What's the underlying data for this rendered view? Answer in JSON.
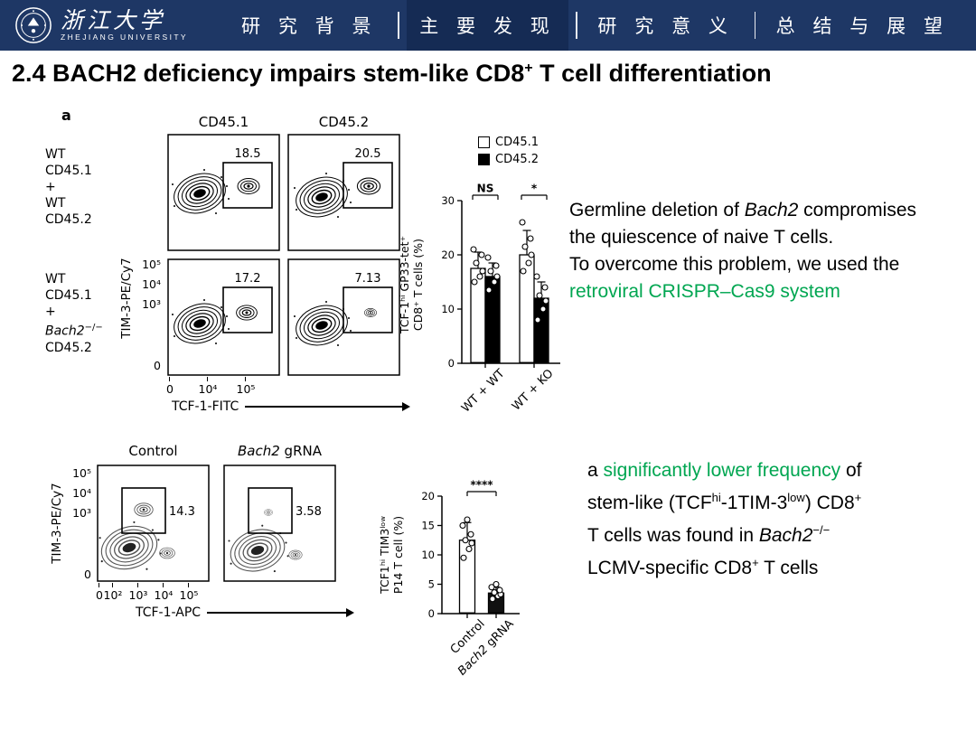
{
  "header": {
    "logo": {
      "cn": "浙江大学",
      "en": "ZHEJIANG UNIVERSITY"
    },
    "nav": [
      {
        "label": "研 究 背 景"
      },
      {
        "label": "主 要 发 现"
      },
      {
        "label": "研 究 意 义"
      },
      {
        "label": "总 结 与 展 望"
      }
    ]
  },
  "title": {
    "pre": "2.4 BACH2 deficiency impairs stem-like CD8",
    "sup": "+",
    "post": " T cell differentiation"
  },
  "figure_top": {
    "panel_label": "a",
    "col_headers": [
      "CD45.1",
      "CD45.2"
    ],
    "rows": [
      {
        "label_lines": [
          "WT",
          "CD45.1",
          "+",
          "WT",
          "CD45.2"
        ],
        "values": [
          "18.5",
          "20.5"
        ]
      },
      {
        "label_lines_pre": [
          "WT",
          "CD45.1",
          "+"
        ],
        "gene": "Bach2",
        "gene_sup": "−/−",
        "label_last": "CD45.2",
        "values": [
          "17.2",
          "7.13"
        ]
      }
    ],
    "y_axis": {
      "label": "TIM-3-PE/Cy7",
      "ticks": [
        "10⁵",
        "10⁴",
        "10³",
        "0"
      ]
    },
    "x_axis": {
      "label": "TCF-1-FITC",
      "ticks": [
        "0",
        "10⁴",
        "10⁵"
      ]
    }
  },
  "figure_bottom": {
    "col1": "Control",
    "col2_it": "Bach2",
    "col2_rest": " gRNA",
    "values": [
      "14.3",
      "3.58"
    ],
    "y_axis": {
      "label": "TIM-3-PE/Cy7",
      "ticks": [
        "10⁵",
        "10⁴",
        "10³",
        "0"
      ]
    },
    "x_axis": {
      "label": "TCF-1-APC",
      "ticks": [
        "0",
        "10²",
        "10³",
        "10⁴",
        "10⁵"
      ]
    }
  },
  "text_top": {
    "l1a": "Germline deletion of ",
    "l1b": "Bach2",
    "l1c": " compromises",
    "l2": "the quiescence of naive T cells.",
    "l3": "To overcome this problem, we used the",
    "l4": "retroviral CRISPR–Cas9 system"
  },
  "text_bottom": {
    "l1a": "a ",
    "l1b": "significantly lower frequency",
    "l1c": " of",
    "l2a": "stem-like (TCF",
    "l2sup1": "hi",
    "l2b": "-1TIM-3",
    "l2sup2": "low",
    "l2c": ") CD8",
    "l2sup3": "+",
    "l3a": "T cells was found in ",
    "l3it": "Bach2",
    "l3sup": "−/−",
    "l4a": "LCMV-specific CD8",
    "l4sup": "+",
    "l4b": " T cells"
  },
  "chart_data": [
    {
      "type": "bar",
      "ylabel_line1": "TCF-1ʰⁱ GP33-tet⁺",
      "ylabel_line2": "CD8⁺ T cells (%)",
      "ylim": [
        0,
        30
      ],
      "yticks": [
        0,
        10,
        20,
        30
      ],
      "categories": [
        "WT + WT",
        "WT + KO"
      ],
      "legend": [
        {
          "label": "CD45.1",
          "fill": "#ffffff"
        },
        {
          "label": "CD45.2",
          "fill": "#000000"
        }
      ],
      "series": [
        {
          "name": "CD45.1",
          "fill": "#ffffff",
          "values": [
            17.5,
            20
          ],
          "errors": [
            3,
            4.5
          ],
          "dots": [
            [
              15,
              16,
              17,
              18.5,
              20,
              21
            ],
            [
              17,
              18.5,
              20,
              21.5,
              23,
              26
            ]
          ]
        },
        {
          "name": "CD45.2",
          "fill": "#000000",
          "values": [
            16,
            12
          ],
          "errors": [
            2.5,
            3
          ],
          "dots": [
            [
              13.5,
              15,
              16,
              17,
              18,
              19.5
            ],
            [
              8,
              10,
              11.5,
              12.5,
              14,
              16
            ]
          ]
        }
      ],
      "significance": [
        {
          "group": "WT + WT",
          "label": "NS"
        },
        {
          "group": "WT + KO",
          "label": "*"
        }
      ],
      "grid": false,
      "legend_position": "top-right"
    },
    {
      "type": "bar",
      "ylabel_line1": "TCF1ʰⁱ TIM3ˡᵒʷ",
      "ylabel_line2": "P14 T cell (%)",
      "ylim": [
        0,
        20
      ],
      "yticks": [
        0,
        5,
        10,
        15,
        20
      ],
      "categories": [
        "Control",
        "Bach2 gRNA"
      ],
      "bars": [
        {
          "label": "Control",
          "value": 12.5,
          "error": 3,
          "fill": "#ffffff",
          "dots": [
            9.5,
            11,
            12,
            12.5,
            13.5,
            15,
            16
          ]
        },
        {
          "label_it": "Bach2",
          "label_rest": " gRNA",
          "value": 3.5,
          "error": 1,
          "fill": "#111111",
          "dots": [
            2.5,
            3,
            3.3,
            3.6,
            4,
            4.5,
            5
          ]
        }
      ],
      "significance": "****",
      "grid": false
    }
  ],
  "colors": {
    "accent_green": "#00A651",
    "header_navy": "#1E3765",
    "header_active": "#152B54"
  }
}
